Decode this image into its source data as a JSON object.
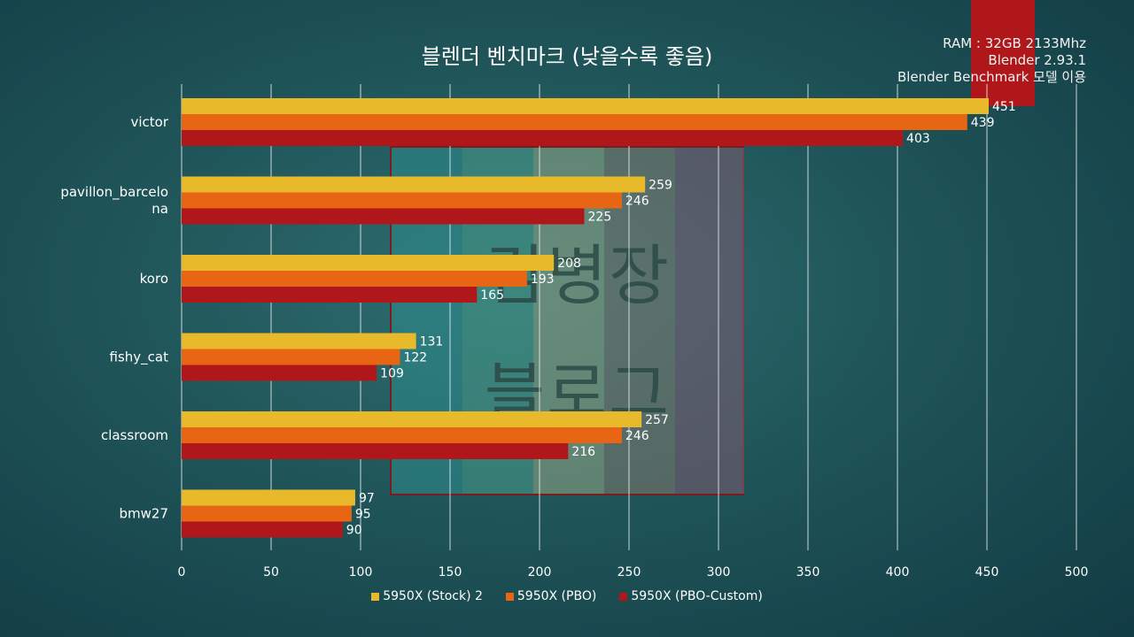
{
  "chart_data": {
    "type": "bar",
    "orientation": "horizontal",
    "title": "블렌더 벤치마크 (낮을수록 좋음)",
    "categories": [
      "victor",
      "pavillon_barcelona",
      "koro",
      "fishy_cat",
      "classroom",
      "bmw27"
    ],
    "category_lines": [
      [
        "victor"
      ],
      [
        "pavillon_barcelo",
        "na"
      ],
      [
        "koro"
      ],
      [
        "fishy_cat"
      ],
      [
        "classroom"
      ],
      [
        "bmw27"
      ]
    ],
    "series": [
      {
        "name": "5950X (Stock) 2",
        "color": "#e8b92b",
        "values": [
          451,
          259,
          208,
          131,
          257,
          97
        ]
      },
      {
        "name": "5950X (PBO)",
        "color": "#e86613",
        "values": [
          439,
          246,
          193,
          122,
          246,
          95
        ]
      },
      {
        "name": "5950X (PBO-Custom)",
        "color": "#b0171a",
        "values": [
          403,
          225,
          165,
          109,
          216,
          90
        ]
      }
    ],
    "xlim": [
      0,
      500
    ],
    "xticks": [
      0,
      50,
      100,
      150,
      200,
      250,
      300,
      350,
      400,
      450,
      500
    ],
    "grid": true,
    "legend_position": "bottom",
    "data_labels": true
  },
  "info": {
    "line1": "RAM : 32GB 2133Mhz",
    "line2": "Blender 2.93.1",
    "line3": "Blender Benchmark 모델 이용"
  },
  "watermark": {
    "line1": "김병장",
    "line2": "블로그"
  }
}
